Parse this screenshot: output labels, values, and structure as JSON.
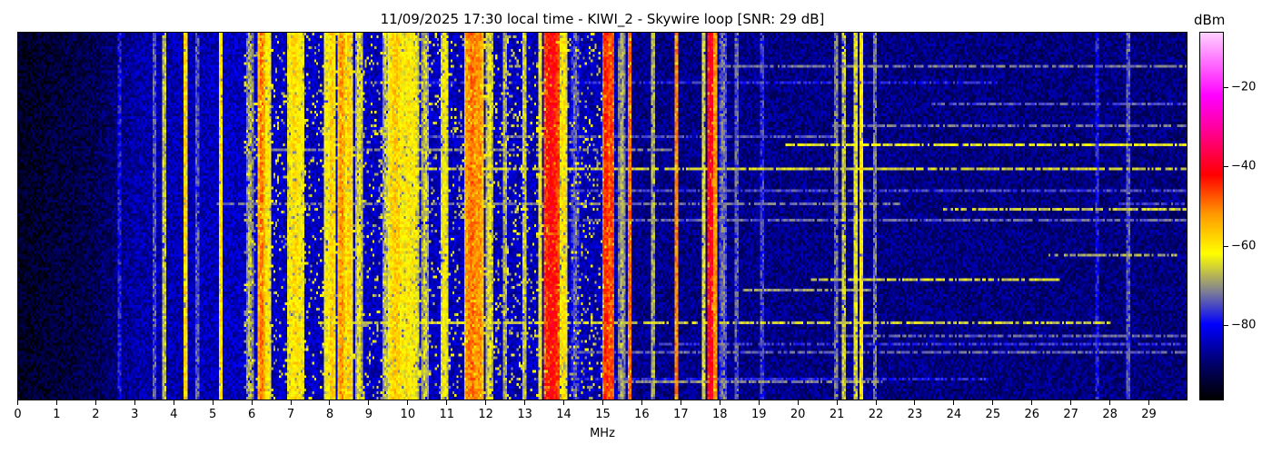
{
  "chart_data": {
    "type": "heatmap",
    "title": "11/09/2025 17:30 local time - KIWI_2 - Skywire loop [SNR: 29 dB]",
    "xlabel": "MHz",
    "ylabel": "",
    "xlim": [
      0,
      30
    ],
    "x_ticks": [
      0,
      1,
      2,
      3,
      4,
      5,
      6,
      7,
      8,
      9,
      10,
      11,
      12,
      13,
      14,
      15,
      16,
      17,
      18,
      19,
      20,
      21,
      22,
      23,
      24,
      25,
      26,
      27,
      28,
      29
    ],
    "colorbar": {
      "label": "dBm",
      "range": [
        -99,
        -6
      ],
      "ticks": [
        -20,
        -40,
        -60,
        -80
      ],
      "colormap": [
        [
          -99,
          "#000000"
        ],
        [
          -90,
          "#00006a"
        ],
        [
          -80,
          "#0000ff"
        ],
        [
          -72,
          "#7a7a9a"
        ],
        [
          -62,
          "#ffff00"
        ],
        [
          -52,
          "#ff9900"
        ],
        [
          -42,
          "#ff0000"
        ],
        [
          -30,
          "#ff00a0"
        ],
        [
          -22,
          "#ff00ff"
        ],
        [
          -6,
          "#ffd0ff"
        ]
      ]
    },
    "noise_floor_dbm": [
      [
        0,
        -96
      ],
      [
        2,
        -92
      ],
      [
        3,
        -86
      ],
      [
        6,
        -84
      ],
      [
        15,
        -85
      ],
      [
        16,
        -88
      ],
      [
        30,
        -89
      ]
    ],
    "signals": [
      {
        "mhz": 2.6,
        "dbm": -76,
        "width_mhz": 0.03
      },
      {
        "mhz": 3.5,
        "dbm": -72,
        "width_mhz": 0.03
      },
      {
        "mhz": 3.75,
        "dbm": -64,
        "width_mhz": 0.03
      },
      {
        "mhz": 4.3,
        "dbm": -56,
        "width_mhz": 0.04
      },
      {
        "mhz": 4.6,
        "dbm": -72,
        "width_mhz": 0.03
      },
      {
        "mhz": 5.2,
        "dbm": -57,
        "width_mhz": 0.04
      },
      {
        "mhz": 5.95,
        "dbm": -66,
        "width_mhz": 0.05
      },
      {
        "mhz": 6.25,
        "dbm": -48,
        "width_mhz": 0.05
      },
      {
        "mhz": 6.4,
        "dbm": -58,
        "width_mhz": 0.06
      },
      {
        "mhz": 7.12,
        "dbm": -58,
        "width_mhz": 0.2
      },
      {
        "mhz": 7.9,
        "dbm": -60,
        "width_mhz": 0.04
      },
      {
        "mhz": 8.05,
        "dbm": -55,
        "width_mhz": 0.05
      },
      {
        "mhz": 8.3,
        "dbm": -50,
        "width_mhz": 0.05
      },
      {
        "mhz": 8.5,
        "dbm": -56,
        "width_mhz": 0.08
      },
      {
        "mhz": 8.75,
        "dbm": -62,
        "width_mhz": 0.05
      },
      {
        "mhz": 9.45,
        "dbm": -64,
        "width_mhz": 0.05
      },
      {
        "mhz": 9.7,
        "dbm": -56,
        "width_mhz": 0.18
      },
      {
        "mhz": 10.0,
        "dbm": -58,
        "width_mhz": 0.06
      },
      {
        "mhz": 10.15,
        "dbm": -60,
        "width_mhz": 0.1
      },
      {
        "mhz": 10.45,
        "dbm": -64,
        "width_mhz": 0.05
      },
      {
        "mhz": 10.95,
        "dbm": -60,
        "width_mhz": 0.06
      },
      {
        "mhz": 11.65,
        "dbm": -48,
        "width_mhz": 0.15
      },
      {
        "mhz": 11.85,
        "dbm": -50,
        "width_mhz": 0.06
      },
      {
        "mhz": 12.1,
        "dbm": -62,
        "width_mhz": 0.05
      },
      {
        "mhz": 12.5,
        "dbm": -66,
        "width_mhz": 0.04
      },
      {
        "mhz": 13.0,
        "dbm": -64,
        "width_mhz": 0.04
      },
      {
        "mhz": 13.4,
        "dbm": -60,
        "width_mhz": 0.04
      },
      {
        "mhz": 13.7,
        "dbm": -40,
        "width_mhz": 0.15
      },
      {
        "mhz": 14.0,
        "dbm": -58,
        "width_mhz": 0.05
      },
      {
        "mhz": 14.3,
        "dbm": -72,
        "width_mhz": 0.05
      },
      {
        "mhz": 15.1,
        "dbm": -42,
        "width_mhz": 0.05
      },
      {
        "mhz": 15.25,
        "dbm": -44,
        "width_mhz": 0.04
      },
      {
        "mhz": 15.5,
        "dbm": -66,
        "width_mhz": 0.05
      },
      {
        "mhz": 15.7,
        "dbm": -47,
        "width_mhz": 0.04
      },
      {
        "mhz": 16.3,
        "dbm": -66,
        "width_mhz": 0.04
      },
      {
        "mhz": 16.9,
        "dbm": -48,
        "width_mhz": 0.03
      },
      {
        "mhz": 17.6,
        "dbm": -62,
        "width_mhz": 0.03
      },
      {
        "mhz": 17.78,
        "dbm": -38,
        "width_mhz": 0.05
      },
      {
        "mhz": 17.9,
        "dbm": -50,
        "width_mhz": 0.04
      },
      {
        "mhz": 18.1,
        "dbm": -70,
        "width_mhz": 0.05
      },
      {
        "mhz": 18.45,
        "dbm": -72,
        "width_mhz": 0.04
      },
      {
        "mhz": 19.1,
        "dbm": -74,
        "width_mhz": 0.03
      },
      {
        "mhz": 21.0,
        "dbm": -70,
        "width_mhz": 0.04
      },
      {
        "mhz": 21.2,
        "dbm": -64,
        "width_mhz": 0.03
      },
      {
        "mhz": 21.5,
        "dbm": -62,
        "width_mhz": 0.04
      },
      {
        "mhz": 21.65,
        "dbm": -58,
        "width_mhz": 0.04
      },
      {
        "mhz": 22.0,
        "dbm": -70,
        "width_mhz": 0.04
      },
      {
        "mhz": 27.7,
        "dbm": -76,
        "width_mhz": 0.03
      },
      {
        "mhz": 28.5,
        "dbm": -72,
        "width_mhz": 0.03
      }
    ]
  }
}
